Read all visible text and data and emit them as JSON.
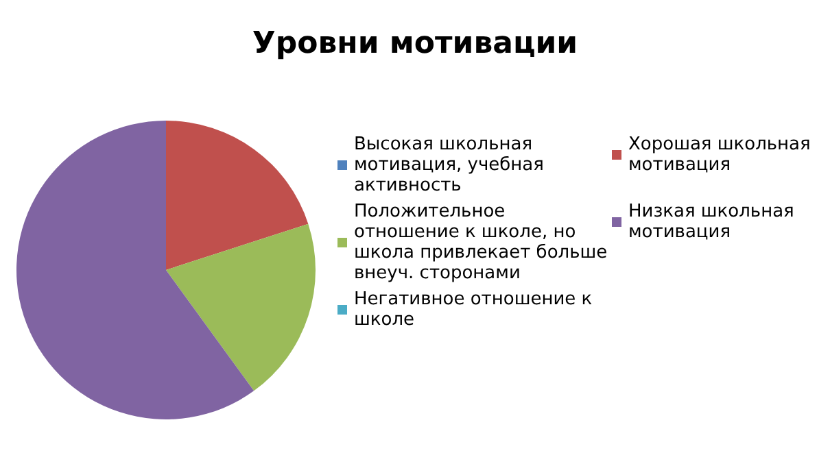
{
  "chart_data": {
    "type": "pie",
    "title": "Уровни мотивации",
    "categories": [
      "Высокая школьная мотивация, учебная активность",
      "Хорошая школьная мотивация",
      "Положительное отношение к школе, но школа привлекает больше внеуч. сторонами",
      "Низкая школьная мотивация",
      "Негативное отношение к школе"
    ],
    "values": [
      0,
      20,
      20,
      60,
      0
    ],
    "colors": [
      "#4f81bd",
      "#c0504d",
      "#9bbb59",
      "#8064a2",
      "#4bacc6"
    ],
    "legend": "right"
  }
}
